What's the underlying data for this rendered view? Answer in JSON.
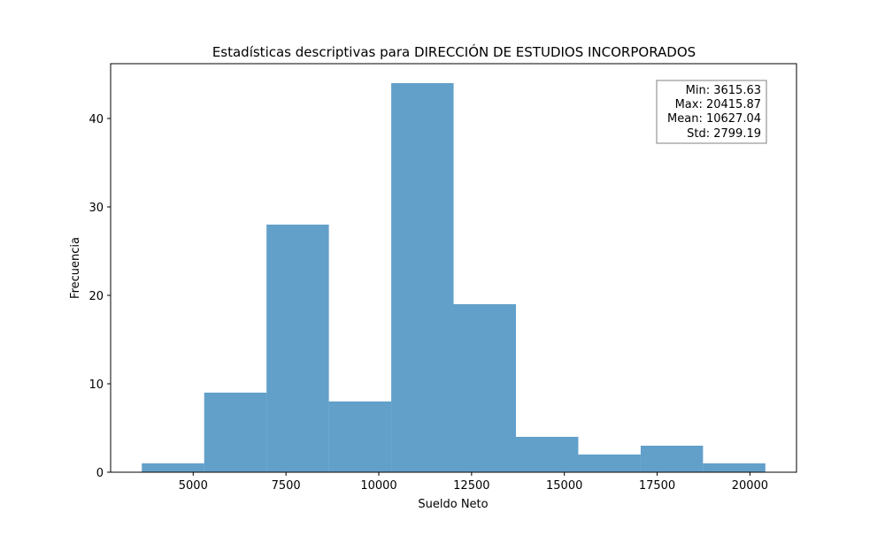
{
  "chart_data": {
    "type": "bar",
    "title": "Estadísticas descriptivas para DIRECCIÓN DE ESTUDIOS INCORPORADOS",
    "xlabel": "Sueldo Neto",
    "ylabel": "Frecuencia",
    "xlim": [
      2775,
      21255
    ],
    "ylim": [
      0,
      46.2
    ],
    "bins": [
      {
        "start": 3615.63,
        "end": 5295.65,
        "count": 1
      },
      {
        "start": 5295.65,
        "end": 6975.68,
        "count": 9
      },
      {
        "start": 6975.68,
        "end": 8655.7,
        "count": 28
      },
      {
        "start": 8655.7,
        "end": 10335.72,
        "count": 8
      },
      {
        "start": 10335.72,
        "end": 12015.75,
        "count": 44
      },
      {
        "start": 12015.75,
        "end": 13695.77,
        "count": 19
      },
      {
        "start": 13695.77,
        "end": 15375.8,
        "count": 4
      },
      {
        "start": 15375.8,
        "end": 17055.82,
        "count": 2
      },
      {
        "start": 17055.82,
        "end": 18735.85,
        "count": 3
      },
      {
        "start": 18735.85,
        "end": 20415.87,
        "count": 1
      }
    ],
    "x_ticks": [
      5000,
      7500,
      10000,
      12500,
      15000,
      17500,
      20000
    ],
    "x_tick_labels": [
      "5000",
      "7500",
      "10000",
      "12500",
      "15000",
      "17500",
      "20000"
    ],
    "y_ticks": [
      0,
      10,
      20,
      30,
      40
    ],
    "y_tick_labels": [
      "0",
      "10",
      "20",
      "30",
      "40"
    ],
    "stats_box": {
      "placement": "top-right",
      "lines": [
        "Min: 3615.63",
        "Max: 20415.87",
        "Mean: 10627.04",
        "Std: 2799.19"
      ]
    },
    "bar_color": "#1f77b4",
    "bar_alpha": 0.7,
    "grid": false
  }
}
